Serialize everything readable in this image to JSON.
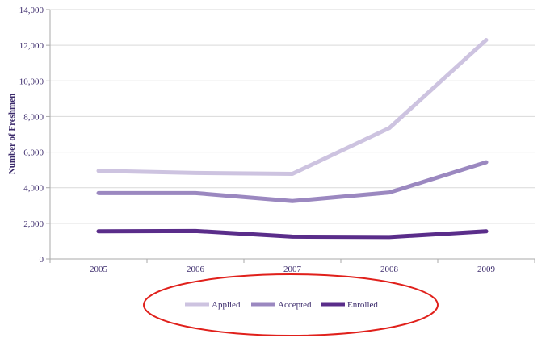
{
  "chart_data": {
    "type": "line",
    "title": "",
    "xlabel": "",
    "ylabel": "Number of Freshmen",
    "ylim": [
      0,
      14000
    ],
    "yticks": [
      0,
      2000,
      4000,
      6000,
      8000,
      10000,
      12000,
      14000
    ],
    "ytick_labels": [
      "0",
      "2,000",
      "4,000",
      "6,000",
      "8,000",
      "10,000",
      "12,000",
      "14,000"
    ],
    "categories": [
      "2005",
      "2006",
      "2007",
      "2008",
      "2009"
    ],
    "grid": "horizontal",
    "legend_position": "bottom",
    "series": [
      {
        "name": "Applied",
        "color": "#cdc3e0",
        "values": [
          4950,
          4830,
          4780,
          7350,
          12300
        ]
      },
      {
        "name": "Accepted",
        "color": "#9b88c0",
        "values": [
          3700,
          3700,
          3250,
          3730,
          5430
        ]
      },
      {
        "name": "Enrolled",
        "color": "#5a2d8a",
        "values": [
          1550,
          1570,
          1250,
          1230,
          1550
        ]
      }
    ],
    "annotation": {
      "shape": "ellipse",
      "color": "#e0201b",
      "target": "legend"
    }
  }
}
